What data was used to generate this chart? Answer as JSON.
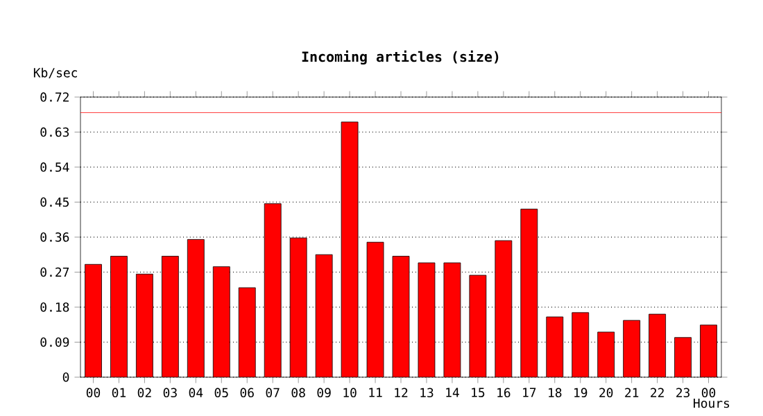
{
  "chart_data": {
    "type": "bar",
    "title": "Incoming articles (size)",
    "ylabel": "Kb/sec",
    "xlabel": "Hours",
    "categories": [
      "00",
      "01",
      "02",
      "03",
      "04",
      "05",
      "06",
      "07",
      "08",
      "09",
      "10",
      "11",
      "12",
      "13",
      "14",
      "15",
      "16",
      "17",
      "18",
      "19",
      "20",
      "21",
      "22",
      "23",
      "00"
    ],
    "values": [
      0.29,
      0.311,
      0.265,
      0.311,
      0.354,
      0.284,
      0.23,
      0.446,
      0.358,
      0.315,
      0.656,
      0.347,
      0.311,
      0.294,
      0.294,
      0.262,
      0.351,
      0.432,
      0.155,
      0.166,
      0.116,
      0.146,
      0.162,
      0.102,
      0.134
    ],
    "color": "#ff0000",
    "ylim": [
      0,
      0.72
    ],
    "yticks": [
      0,
      0.09,
      0.18,
      0.27,
      0.36,
      0.45,
      0.54,
      0.63,
      0.72
    ],
    "grid": "y",
    "ref_lines": [
      {
        "axis": "y",
        "value": 0.68,
        "color": "#ff0000"
      }
    ]
  }
}
